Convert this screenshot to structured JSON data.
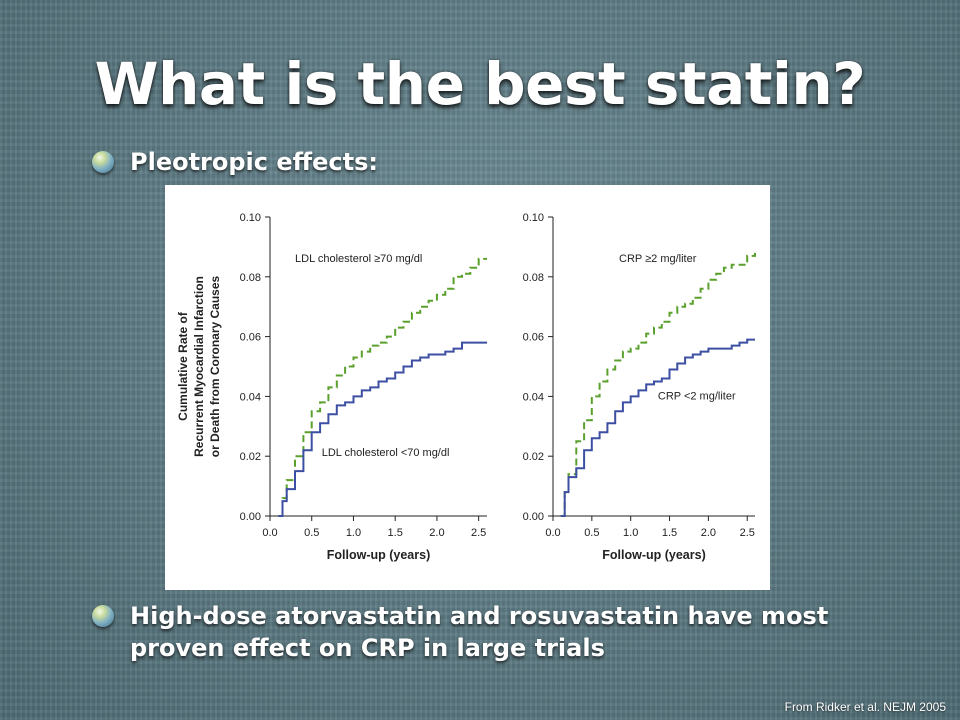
{
  "slide": {
    "title": "What is the best statin?",
    "bullets": [
      "Pleotropic effects:",
      "High-dose atorvastatin and rosuvastatin have most proven effect on CRP in large trials"
    ],
    "citation": "From Ridker et al. NEJM 2005",
    "bullet_icon": "globe-bullet-icon",
    "colors": {
      "background": "#5e7c86",
      "text": "#ffffff"
    }
  },
  "chart_data": [
    {
      "type": "line",
      "xlabel": "Follow-up (years)",
      "ylabel_lines": [
        "Cumulative Rate of",
        "Recurrent Myocardial Infarction",
        "or Death from Coronary Causes"
      ],
      "xlim": [
        0,
        2.6
      ],
      "ylim": [
        0,
        0.1
      ],
      "x_ticks": [
        "0.0",
        "0.5",
        "1.0",
        "1.5",
        "2.0",
        "2.5"
      ],
      "y_ticks": [
        "0.00",
        "0.02",
        "0.04",
        "0.06",
        "0.08",
        "0.10"
      ],
      "series": [
        {
          "name": "LDL cholesterol ≥70 mg/dl",
          "color": "#5aa02c",
          "dash": "dashed",
          "points": [
            [
              0.1,
              0.0
            ],
            [
              0.15,
              0.006
            ],
            [
              0.2,
              0.012
            ],
            [
              0.3,
              0.02
            ],
            [
              0.4,
              0.028
            ],
            [
              0.5,
              0.035
            ],
            [
              0.6,
              0.038
            ],
            [
              0.7,
              0.043
            ],
            [
              0.8,
              0.047
            ],
            [
              0.9,
              0.05
            ],
            [
              1.0,
              0.053
            ],
            [
              1.1,
              0.055
            ],
            [
              1.2,
              0.057
            ],
            [
              1.3,
              0.058
            ],
            [
              1.4,
              0.06
            ],
            [
              1.5,
              0.063
            ],
            [
              1.6,
              0.065
            ],
            [
              1.7,
              0.068
            ],
            [
              1.8,
              0.07
            ],
            [
              1.9,
              0.072
            ],
            [
              2.0,
              0.074
            ],
            [
              2.1,
              0.076
            ],
            [
              2.2,
              0.08
            ],
            [
              2.3,
              0.081
            ],
            [
              2.4,
              0.083
            ],
            [
              2.5,
              0.086
            ],
            [
              2.6,
              0.086
            ]
          ]
        },
        {
          "name": "LDL cholesterol <70 mg/dl",
          "color": "#3d4fa3",
          "dash": "solid",
          "points": [
            [
              0.1,
              0.0
            ],
            [
              0.15,
              0.005
            ],
            [
              0.2,
              0.009
            ],
            [
              0.3,
              0.015
            ],
            [
              0.4,
              0.022
            ],
            [
              0.5,
              0.028
            ],
            [
              0.6,
              0.031
            ],
            [
              0.7,
              0.034
            ],
            [
              0.8,
              0.037
            ],
            [
              0.9,
              0.038
            ],
            [
              1.0,
              0.04
            ],
            [
              1.1,
              0.042
            ],
            [
              1.2,
              0.043
            ],
            [
              1.3,
              0.045
            ],
            [
              1.4,
              0.046
            ],
            [
              1.5,
              0.048
            ],
            [
              1.6,
              0.05
            ],
            [
              1.7,
              0.052
            ],
            [
              1.8,
              0.053
            ],
            [
              1.9,
              0.054
            ],
            [
              2.0,
              0.054
            ],
            [
              2.1,
              0.055
            ],
            [
              2.2,
              0.056
            ],
            [
              2.3,
              0.058
            ],
            [
              2.4,
              0.058
            ],
            [
              2.6,
              0.058
            ]
          ]
        }
      ],
      "annotations": [
        {
          "text": "LDL cholesterol ≥70 mg/dl",
          "x": 0.3,
          "y": 0.085
        },
        {
          "text": "LDL cholesterol <70 mg/dl",
          "x": 0.62,
          "y": 0.02
        }
      ]
    },
    {
      "type": "line",
      "xlabel": "Follow-up (years)",
      "xlim": [
        0,
        2.6
      ],
      "ylim": [
        0,
        0.1
      ],
      "x_ticks": [
        "0.0",
        "0.5",
        "1.0",
        "1.5",
        "2.0",
        "2.5"
      ],
      "y_ticks": [
        "0.00",
        "0.02",
        "0.04",
        "0.06",
        "0.08",
        "0.10"
      ],
      "series": [
        {
          "name": "CRP ≥2 mg/liter",
          "color": "#5aa02c",
          "dash": "dashed",
          "points": [
            [
              0.1,
              0.0
            ],
            [
              0.15,
              0.008
            ],
            [
              0.2,
              0.014
            ],
            [
              0.3,
              0.025
            ],
            [
              0.4,
              0.032
            ],
            [
              0.5,
              0.04
            ],
            [
              0.6,
              0.045
            ],
            [
              0.7,
              0.049
            ],
            [
              0.8,
              0.052
            ],
            [
              0.9,
              0.055
            ],
            [
              1.0,
              0.056
            ],
            [
              1.1,
              0.058
            ],
            [
              1.2,
              0.061
            ],
            [
              1.3,
              0.063
            ],
            [
              1.4,
              0.065
            ],
            [
              1.5,
              0.068
            ],
            [
              1.6,
              0.07
            ],
            [
              1.7,
              0.071
            ],
            [
              1.8,
              0.073
            ],
            [
              1.9,
              0.076
            ],
            [
              2.0,
              0.079
            ],
            [
              2.1,
              0.081
            ],
            [
              2.2,
              0.083
            ],
            [
              2.3,
              0.084
            ],
            [
              2.4,
              0.084
            ],
            [
              2.5,
              0.087
            ],
            [
              2.6,
              0.088
            ]
          ]
        },
        {
          "name": "CRP <2 mg/liter",
          "color": "#3d4fa3",
          "dash": "solid",
          "points": [
            [
              0.1,
              0.0
            ],
            [
              0.15,
              0.008
            ],
            [
              0.2,
              0.013
            ],
            [
              0.3,
              0.016
            ],
            [
              0.4,
              0.022
            ],
            [
              0.5,
              0.026
            ],
            [
              0.6,
              0.028
            ],
            [
              0.7,
              0.031
            ],
            [
              0.8,
              0.035
            ],
            [
              0.9,
              0.038
            ],
            [
              1.0,
              0.04
            ],
            [
              1.1,
              0.042
            ],
            [
              1.2,
              0.044
            ],
            [
              1.3,
              0.045
            ],
            [
              1.4,
              0.046
            ],
            [
              1.5,
              0.049
            ],
            [
              1.6,
              0.051
            ],
            [
              1.7,
              0.053
            ],
            [
              1.8,
              0.054
            ],
            [
              1.9,
              0.055
            ],
            [
              2.0,
              0.056
            ],
            [
              2.1,
              0.056
            ],
            [
              2.2,
              0.056
            ],
            [
              2.3,
              0.057
            ],
            [
              2.4,
              0.058
            ],
            [
              2.5,
              0.059
            ],
            [
              2.6,
              0.059
            ]
          ]
        }
      ],
      "annotations": [
        {
          "text": "CRP ≥2 mg/liter",
          "x": 0.85,
          "y": 0.085
        },
        {
          "text": "CRP <2 mg/liter",
          "x": 1.35,
          "y": 0.039
        }
      ]
    }
  ]
}
